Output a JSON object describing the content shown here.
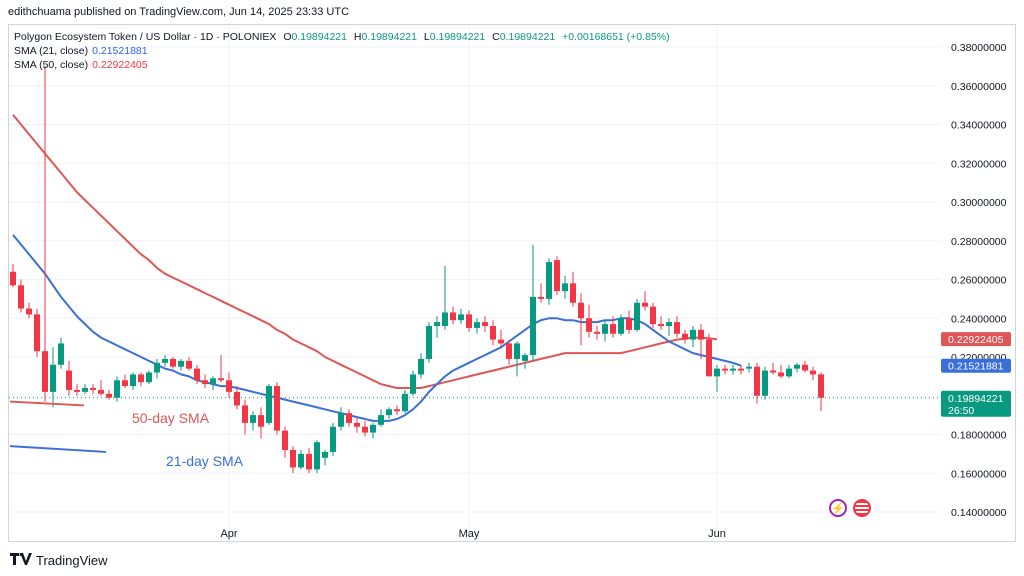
{
  "header": {
    "published": "edithchuama published on TradingView.com, Jun 14, 2025 23:33 UTC"
  },
  "legend": {
    "symbol": "Polygon Ecosystem Token / US Dollar · 1D · POLONIEX",
    "o_label": "O",
    "o_value": "0.19894221",
    "h_label": "H",
    "h_value": "0.19894221",
    "l_label": "L",
    "l_value": "0.19894221",
    "c_label": "C",
    "c_value": "0.19894221",
    "change": "+0.00168651 (+0.85%)",
    "sma21_label": "SMA (21, close)",
    "sma21_value": "0.21521881",
    "sma50_label": "SMA (50, close)",
    "sma50_value": "0.22922405"
  },
  "footer": {
    "brand": "TradingView"
  },
  "icons": [
    "bolt-icon",
    "flag-icon",
    "tradingview-logo-icon"
  ],
  "colors": {
    "up": "#089981",
    "down": "#f23645",
    "sma21": "#3a6fd8",
    "sma50": "#e05555",
    "grid": "#f0f3fa"
  },
  "chart_data": {
    "type": "candlestick",
    "y_range": [
      0.13,
      0.39
    ],
    "y_ticks": [
      "0.14000000",
      "0.16000000",
      "0.18000000",
      "0.20000000",
      "0.22000000",
      "0.24000000",
      "0.26000000",
      "0.28000000",
      "0.30000000",
      "0.32000000",
      "0.34000000",
      "0.36000000",
      "0.38000000"
    ],
    "x_labels": [
      {
        "label": "Apr",
        "index": 27
      },
      {
        "label": "May",
        "index": 57
      },
      {
        "label": "Jun",
        "index": 88
      }
    ],
    "annotations": {
      "sma50_text": "50-day SMA",
      "sma21_text": "21-day SMA"
    },
    "price_labels": {
      "sma50": "0.22922405",
      "sma21": "0.21521881",
      "last": "0.19894221",
      "countdown": "26:50"
    },
    "last_price": 0.19894,
    "candles": [
      [
        0.264,
        0.268,
        0.256,
        0.257
      ],
      [
        0.257,
        0.26,
        0.243,
        0.245
      ],
      [
        0.245,
        0.248,
        0.24,
        0.242
      ],
      [
        0.242,
        0.245,
        0.22,
        0.223
      ],
      [
        0.223,
        0.37,
        0.197,
        0.202
      ],
      [
        0.202,
        0.225,
        0.194,
        0.216
      ],
      [
        0.216,
        0.23,
        0.214,
        0.227
      ],
      [
        0.213,
        0.218,
        0.2,
        0.203
      ],
      [
        0.203,
        0.206,
        0.2,
        0.202
      ],
      [
        0.202,
        0.206,
        0.201,
        0.204
      ],
      [
        0.204,
        0.206,
        0.201,
        0.203
      ],
      [
        0.203,
        0.208,
        0.2,
        0.201
      ],
      [
        0.201,
        0.203,
        0.198,
        0.199
      ],
      [
        0.199,
        0.21,
        0.197,
        0.208
      ],
      [
        0.208,
        0.211,
        0.204,
        0.205
      ],
      [
        0.205,
        0.212,
        0.203,
        0.211
      ],
      [
        0.211,
        0.212,
        0.205,
        0.207
      ],
      [
        0.207,
        0.213,
        0.206,
        0.212
      ],
      [
        0.212,
        0.219,
        0.209,
        0.217
      ],
      [
        0.217,
        0.221,
        0.215,
        0.219
      ],
      [
        0.219,
        0.22,
        0.214,
        0.215
      ],
      [
        0.215,
        0.219,
        0.213,
        0.218
      ],
      [
        0.218,
        0.22,
        0.213,
        0.214
      ],
      [
        0.214,
        0.216,
        0.206,
        0.208
      ],
      [
        0.208,
        0.211,
        0.204,
        0.206
      ],
      [
        0.206,
        0.21,
        0.203,
        0.209
      ],
      [
        0.209,
        0.221,
        0.207,
        0.208
      ],
      [
        0.208,
        0.212,
        0.199,
        0.202
      ],
      [
        0.202,
        0.205,
        0.193,
        0.195
      ],
      [
        0.195,
        0.198,
        0.18,
        0.186
      ],
      [
        0.186,
        0.192,
        0.182,
        0.19
      ],
      [
        0.19,
        0.194,
        0.178,
        0.184
      ],
      [
        0.186,
        0.206,
        0.185,
        0.205
      ],
      [
        0.205,
        0.207,
        0.18,
        0.182
      ],
      [
        0.182,
        0.184,
        0.168,
        0.172
      ],
      [
        0.172,
        0.174,
        0.16,
        0.163
      ],
      [
        0.163,
        0.172,
        0.162,
        0.17
      ],
      [
        0.17,
        0.173,
        0.16,
        0.162
      ],
      [
        0.162,
        0.177,
        0.16,
        0.176
      ],
      [
        0.168,
        0.172,
        0.164,
        0.171
      ],
      [
        0.171,
        0.186,
        0.169,
        0.184
      ],
      [
        0.184,
        0.194,
        0.182,
        0.191
      ],
      [
        0.191,
        0.193,
        0.184,
        0.186
      ],
      [
        0.186,
        0.189,
        0.181,
        0.184
      ],
      [
        0.184,
        0.187,
        0.179,
        0.181
      ],
      [
        0.181,
        0.186,
        0.178,
        0.185
      ],
      [
        0.185,
        0.193,
        0.184,
        0.19
      ],
      [
        0.19,
        0.194,
        0.188,
        0.193
      ],
      [
        0.193,
        0.195,
        0.19,
        0.192
      ],
      [
        0.192,
        0.203,
        0.191,
        0.201
      ],
      [
        0.201,
        0.213,
        0.2,
        0.211
      ],
      [
        0.211,
        0.222,
        0.209,
        0.219
      ],
      [
        0.219,
        0.238,
        0.217,
        0.236
      ],
      [
        0.236,
        0.241,
        0.23,
        0.238
      ],
      [
        0.236,
        0.267,
        0.234,
        0.243
      ],
      [
        0.243,
        0.246,
        0.237,
        0.239
      ],
      [
        0.239,
        0.245,
        0.237,
        0.242
      ],
      [
        0.242,
        0.244,
        0.233,
        0.235
      ],
      [
        0.235,
        0.24,
        0.232,
        0.238
      ],
      [
        0.238,
        0.241,
        0.233,
        0.236
      ],
      [
        0.236,
        0.239,
        0.226,
        0.229
      ],
      [
        0.229,
        0.234,
        0.225,
        0.227
      ],
      [
        0.227,
        0.229,
        0.216,
        0.219
      ],
      [
        0.219,
        0.228,
        0.21,
        0.227
      ],
      [
        0.218,
        0.222,
        0.214,
        0.221
      ],
      [
        0.221,
        0.278,
        0.218,
        0.251
      ],
      [
        0.251,
        0.258,
        0.248,
        0.25
      ],
      [
        0.25,
        0.271,
        0.247,
        0.269
      ],
      [
        0.27,
        0.272,
        0.252,
        0.254
      ],
      [
        0.254,
        0.262,
        0.25,
        0.258
      ],
      [
        0.258,
        0.264,
        0.246,
        0.248
      ],
      [
        0.248,
        0.253,
        0.226,
        0.24
      ],
      [
        0.24,
        0.247,
        0.23,
        0.233
      ],
      [
        0.233,
        0.236,
        0.229,
        0.232
      ],
      [
        0.232,
        0.239,
        0.228,
        0.237
      ],
      [
        0.237,
        0.241,
        0.23,
        0.232
      ],
      [
        0.232,
        0.242,
        0.231,
        0.24
      ],
      [
        0.24,
        0.244,
        0.232,
        0.234
      ],
      [
        0.234,
        0.25,
        0.233,
        0.248
      ],
      [
        0.248,
        0.254,
        0.244,
        0.246
      ],
      [
        0.246,
        0.248,
        0.235,
        0.237
      ],
      [
        0.237,
        0.241,
        0.234,
        0.236
      ],
      [
        0.236,
        0.24,
        0.231,
        0.238
      ],
      [
        0.238,
        0.241,
        0.23,
        0.232
      ],
      [
        0.232,
        0.234,
        0.227,
        0.229
      ],
      [
        0.229,
        0.236,
        0.225,
        0.234
      ],
      [
        0.234,
        0.237,
        0.219,
        0.229
      ],
      [
        0.229,
        0.232,
        0.212,
        0.21
      ],
      [
        0.21,
        0.216,
        0.202,
        0.214
      ],
      [
        0.214,
        0.216,
        0.211,
        0.213
      ],
      [
        0.213,
        0.216,
        0.211,
        0.214
      ],
      [
        0.214,
        0.216,
        0.211,
        0.213
      ],
      [
        0.214,
        0.217,
        0.212,
        0.215
      ],
      [
        0.215,
        0.217,
        0.196,
        0.2
      ],
      [
        0.2,
        0.215,
        0.198,
        0.213
      ],
      [
        0.213,
        0.217,
        0.211,
        0.212
      ],
      [
        0.212,
        0.216,
        0.209,
        0.21
      ],
      [
        0.21,
        0.216,
        0.209,
        0.214
      ],
      [
        0.214,
        0.217,
        0.212,
        0.216
      ],
      [
        0.216,
        0.218,
        0.212,
        0.213
      ],
      [
        0.213,
        0.215,
        0.208,
        0.211
      ],
      [
        0.211,
        0.212,
        0.192,
        0.199
      ]
    ],
    "sma21": [
      0.283,
      0.278,
      0.273,
      0.268,
      0.263,
      0.257,
      0.251,
      0.246,
      0.241,
      0.237,
      0.233,
      0.23,
      0.228,
      0.226,
      0.224,
      0.222,
      0.22,
      0.218,
      0.216,
      0.214,
      0.213,
      0.211,
      0.21,
      0.208,
      0.207,
      0.206,
      0.205,
      0.205,
      0.204,
      0.203,
      0.202,
      0.201,
      0.2,
      0.199,
      0.198,
      0.197,
      0.196,
      0.195,
      0.194,
      0.193,
      0.192,
      0.191,
      0.19,
      0.189,
      0.188,
      0.187,
      0.187,
      0.187,
      0.188,
      0.19,
      0.193,
      0.197,
      0.202,
      0.206,
      0.21,
      0.213,
      0.215,
      0.217,
      0.219,
      0.221,
      0.223,
      0.225,
      0.228,
      0.231,
      0.234,
      0.237,
      0.239,
      0.24,
      0.24,
      0.239,
      0.239,
      0.238,
      0.238,
      0.238,
      0.239,
      0.239,
      0.24,
      0.24,
      0.239,
      0.237,
      0.234,
      0.231,
      0.228,
      0.226,
      0.224,
      0.222,
      0.221,
      0.22,
      0.219,
      0.218,
      0.217,
      0.2155
    ],
    "sma50": [
      0.345,
      0.34,
      0.335,
      0.33,
      0.325,
      0.32,
      0.315,
      0.31,
      0.305,
      0.301,
      0.297,
      0.293,
      0.289,
      0.285,
      0.281,
      0.277,
      0.273,
      0.27,
      0.266,
      0.263,
      0.261,
      0.259,
      0.257,
      0.255,
      0.253,
      0.251,
      0.249,
      0.247,
      0.245,
      0.243,
      0.241,
      0.239,
      0.237,
      0.234,
      0.232,
      0.229,
      0.227,
      0.225,
      0.223,
      0.22,
      0.218,
      0.216,
      0.214,
      0.212,
      0.21,
      0.208,
      0.206,
      0.205,
      0.204,
      0.204,
      0.204,
      0.204,
      0.205,
      0.206,
      0.207,
      0.208,
      0.209,
      0.21,
      0.211,
      0.212,
      0.213,
      0.214,
      0.215,
      0.216,
      0.217,
      0.218,
      0.219,
      0.22,
      0.221,
      0.222,
      0.222,
      0.222,
      0.222,
      0.222,
      0.222,
      0.222,
      0.222,
      0.223,
      0.224,
      0.225,
      0.226,
      0.227,
      0.228,
      0.229,
      0.2295,
      0.23,
      0.23,
      0.2296,
      0.2292
    ],
    "legend_lines": {
      "sma50": {
        "from": 0.197,
        "to": 0.195
      },
      "sma21": {
        "from": 0.174,
        "to": 0.171
      }
    }
  }
}
